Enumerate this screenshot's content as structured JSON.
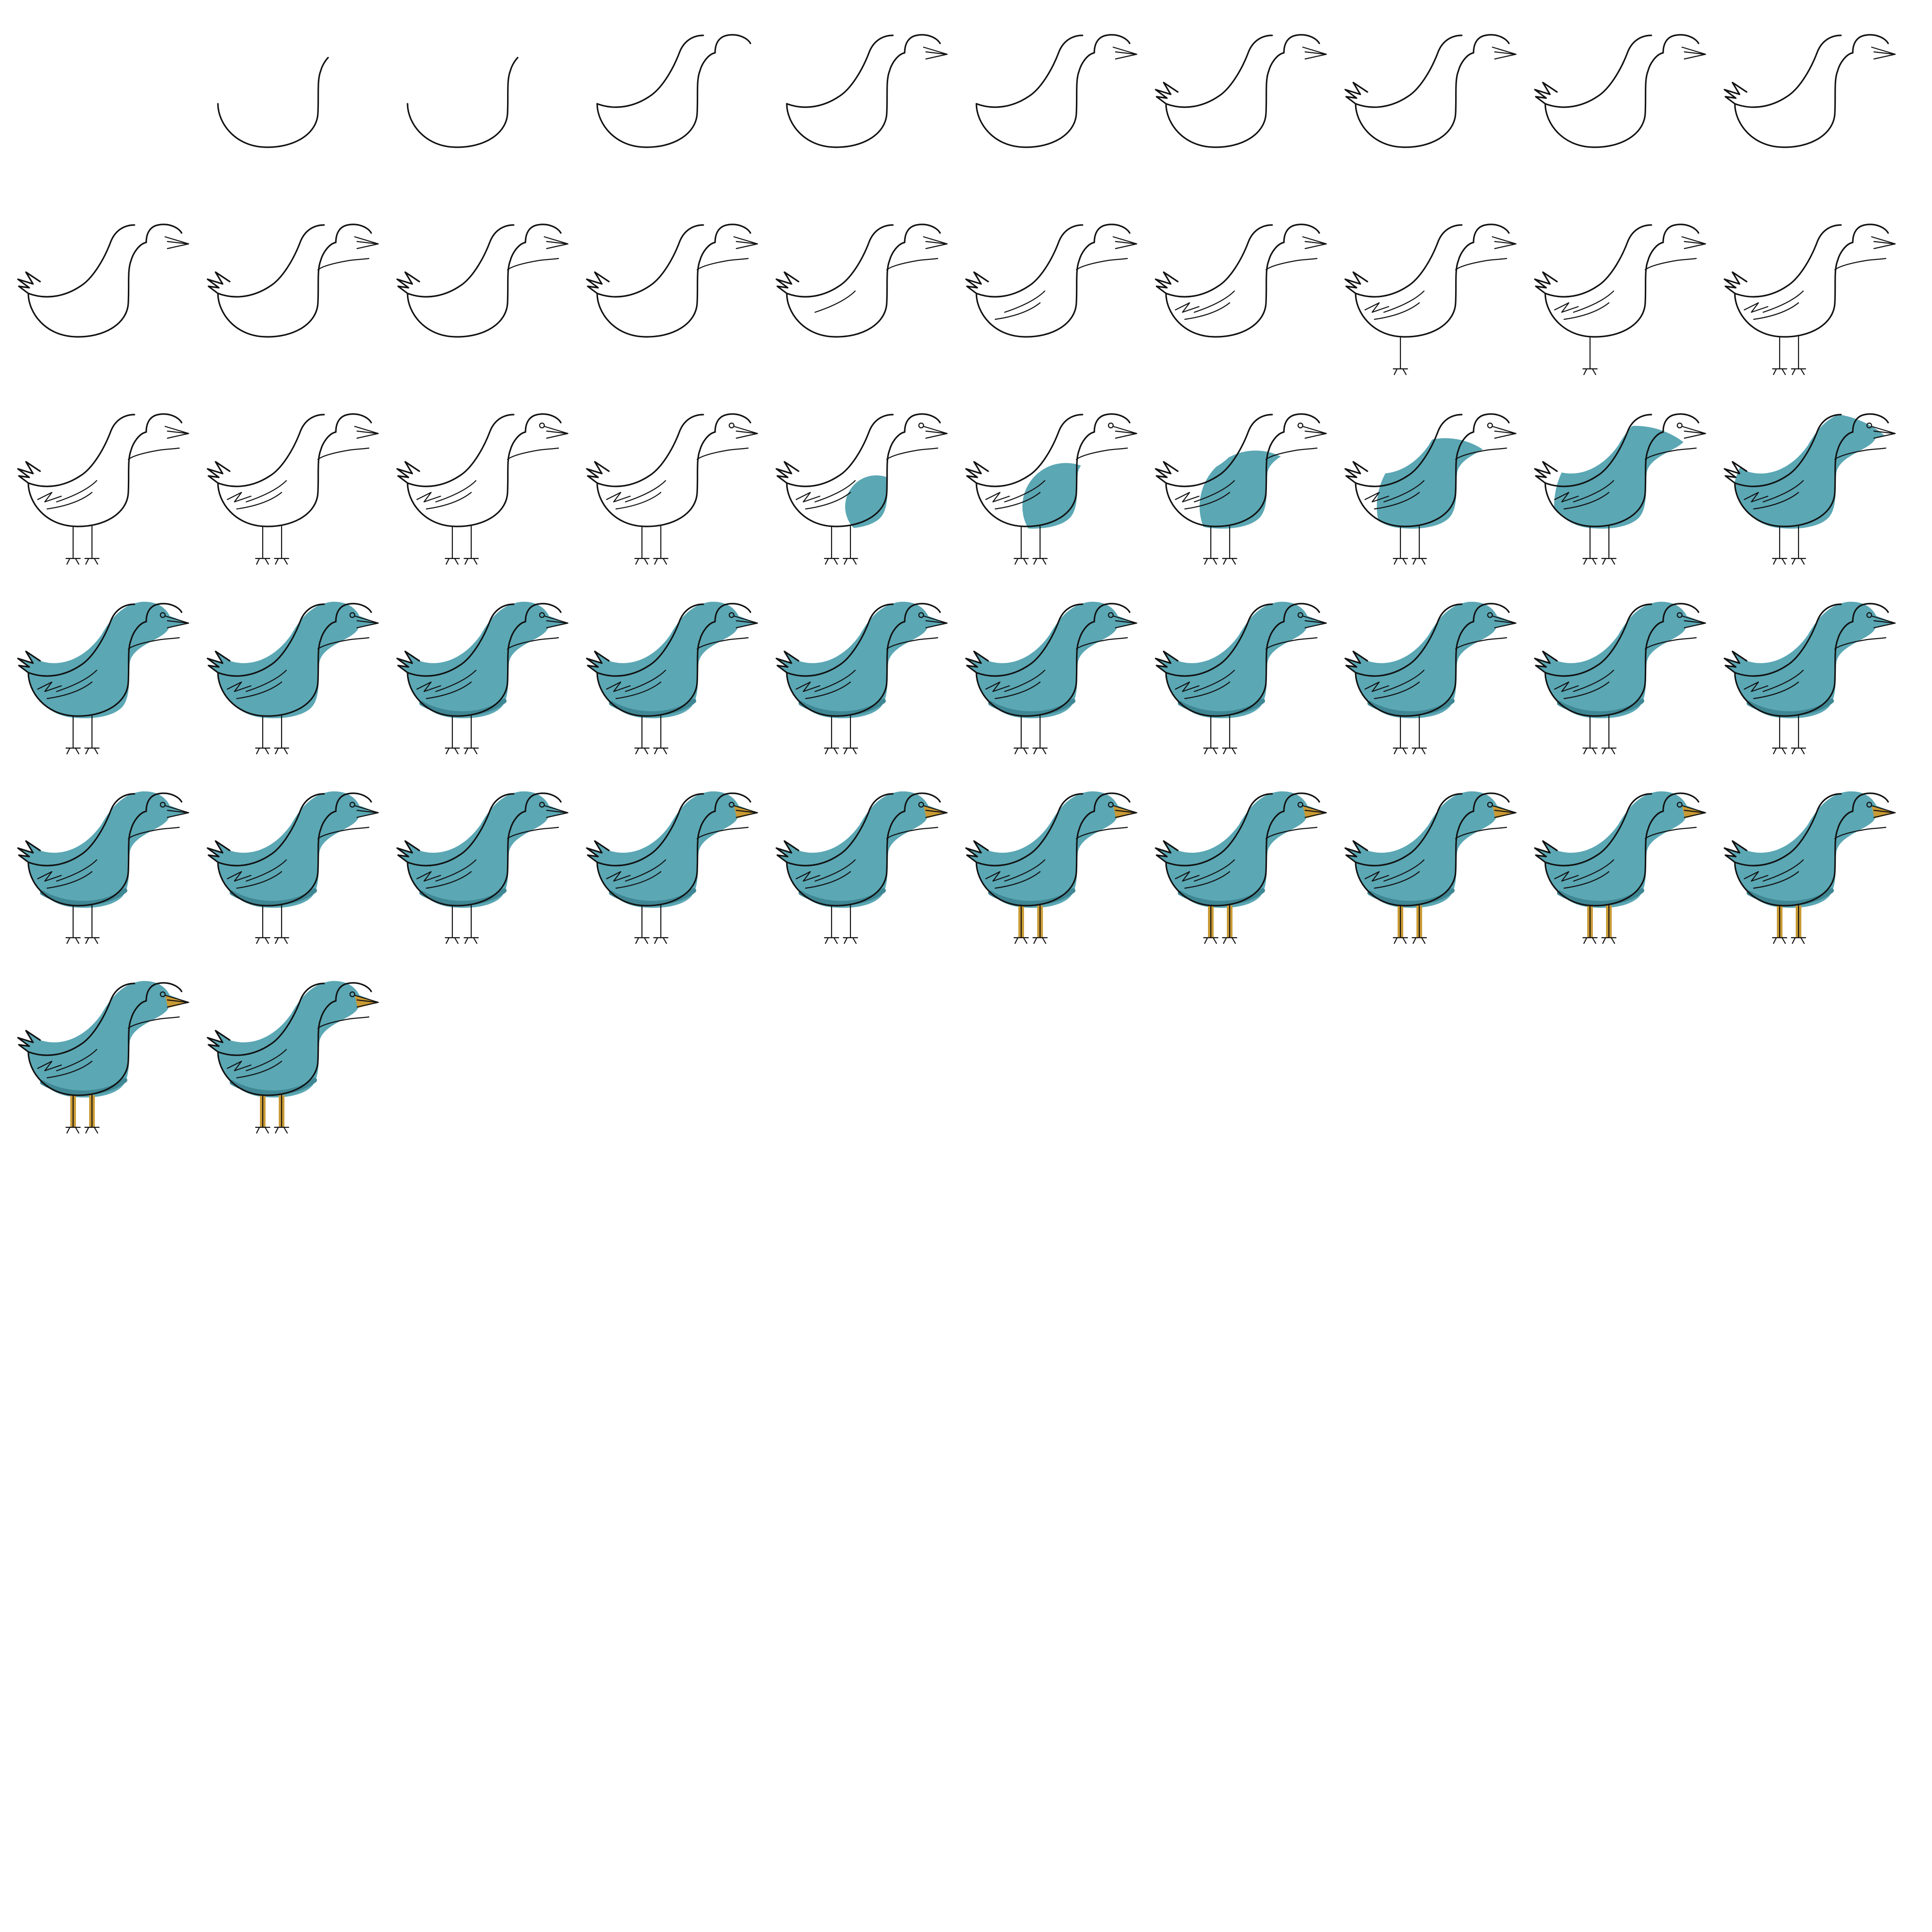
{
  "sequence": {
    "frame_count": 52,
    "columns": 10,
    "colors": {
      "background": "#ffffff",
      "outline": "#111111",
      "body_fill": "#5ba7b4",
      "body_shade": "#3f8794",
      "beak_leg_fill": "#c99a35"
    },
    "stages": [
      {
        "name": "blank",
        "frames": [
          1
        ]
      },
      {
        "name": "outline-drawing",
        "frames": [
          2,
          3,
          4,
          5,
          6,
          7,
          8,
          9,
          10,
          11,
          12,
          13,
          14,
          15,
          16,
          17,
          18,
          19,
          20,
          21,
          22,
          23,
          24
        ]
      },
      {
        "name": "body-coloring",
        "frames": [
          25,
          26,
          27,
          28,
          29,
          30,
          31,
          32,
          33,
          34,
          35,
          36,
          37,
          38,
          39,
          40,
          41,
          42,
          43
        ]
      },
      {
        "name": "beak-and-legs-coloring",
        "frames": [
          44,
          45,
          46,
          47,
          48,
          49,
          50,
          51,
          52
        ]
      }
    ],
    "subject": "bird"
  }
}
